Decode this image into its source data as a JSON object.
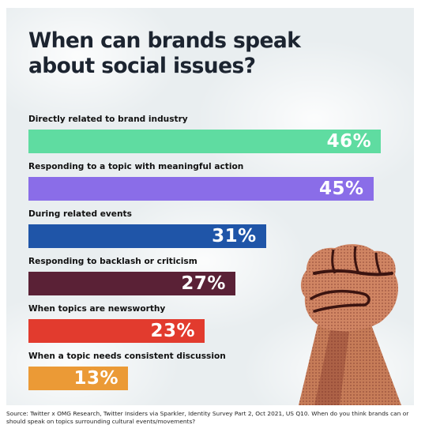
{
  "title": "When can brands speak about social issues?",
  "chart_data": {
    "type": "bar",
    "orientation": "horizontal",
    "title": "When can brands speak about social issues?",
    "categories": [
      "Directly related to brand industry",
      "Responding to a topic with meaningful action",
      "During related events",
      "Responding to backlash or criticism",
      "When topics are newsworthy",
      "When a topic needs consistent discussion"
    ],
    "values": [
      46,
      45,
      31,
      27,
      23,
      13
    ],
    "value_labels": [
      "46%",
      "45%",
      "31%",
      "27%",
      "23%",
      "13%"
    ],
    "colors": [
      "#5fdca1",
      "#8a6de8",
      "#1f55a8",
      "#5a2136",
      "#e23b2e",
      "#eb9a36"
    ],
    "xlim": [
      0,
      50
    ],
    "grid": false,
    "legend": "none"
  },
  "source": "Source: Twitter x OMG Research, Twitter Insiders via Sparkler, Identity Survey Part 2, Oct 2021, US Q10. When do you think brands can or should speak on topics surrounding cultural events/movements?"
}
